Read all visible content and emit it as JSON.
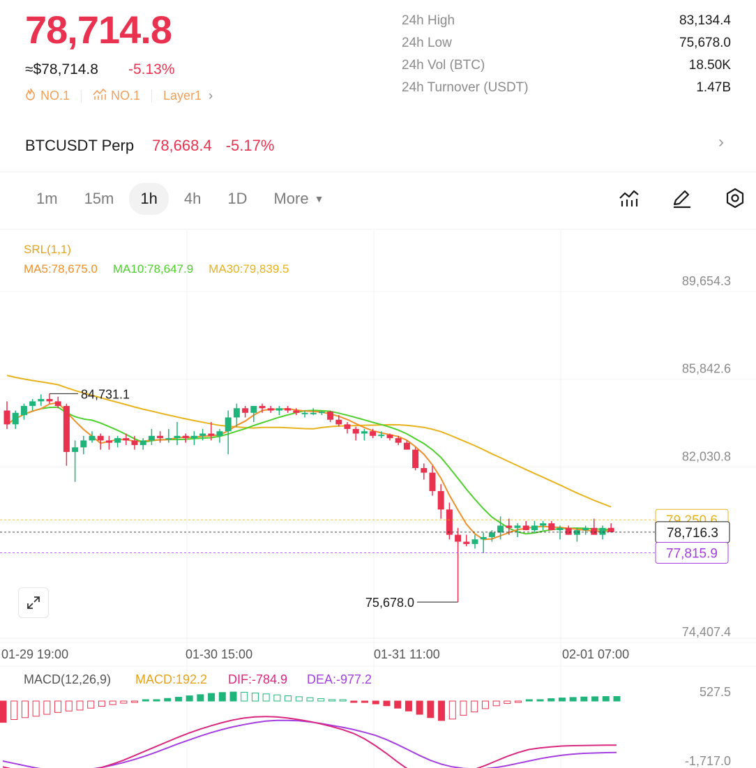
{
  "header": {
    "last_price": "78,714.8",
    "usd_price": "≈$78,714.8",
    "change_pct": "-5.13%",
    "tags": [
      {
        "icon": "flame-icon",
        "label": "NO.1"
      },
      {
        "icon": "trend-icon",
        "label": "NO.1"
      },
      {
        "icon": "",
        "label": "Layer1"
      }
    ]
  },
  "stats": [
    {
      "label": "24h  High",
      "value": "83,134.4"
    },
    {
      "label": "24h  Low",
      "value": "75,678.0"
    },
    {
      "label": "24h  Vol (BTC)",
      "value": "18.50K"
    },
    {
      "label": "24h  Turnover (USDT)",
      "value": "1.47B"
    }
  ],
  "perp": {
    "name": "BTCUSDT Perp",
    "price": "78,668.4",
    "change": "-5.17%"
  },
  "timeframes": [
    "1m",
    "15m",
    "1h",
    "4h",
    "1D"
  ],
  "timeframe_active": "1h",
  "more_label": "More",
  "tool_icons": [
    "indicator-icon",
    "draw-pen-icon",
    "settings-hex-icon"
  ],
  "indicators": {
    "srl": "SRL(1,1)",
    "ma5": "MA5:78,675.0",
    "ma10": "MA10:78,647.9",
    "ma30": "MA30:79,839.5"
  },
  "macd_legend": {
    "name": "MACD(12,26,9)",
    "macd": "MACD:192.2",
    "dif": "DIF:-784.9",
    "dea": "DEA:-977.2"
  },
  "colors": {
    "up": "#1fb57a",
    "down": "#e8324f",
    "ma5": "#ef8f2a",
    "ma10": "#4fcf2e",
    "ma30": "#e8b21d",
    "dif": "#d9267e",
    "dea": "#a43ee0"
  },
  "chart_data": {
    "type": "candlestick",
    "y_axis_ticks": [
      "89,654.3",
      "85,842.6",
      "82,030.8",
      "74,407.4"
    ],
    "x_axis_ticks": [
      "01-29 19:00",
      "01-30 15:00",
      "01-31 11:00",
      "02-01 07:00"
    ],
    "ylim": [
      74407.4,
      89654.3
    ],
    "high_annotation": "84,731.1",
    "low_annotation": "75,678.0",
    "price_levels": [
      {
        "label": "79,250.6",
        "value": 79250.6,
        "kind": "ma30"
      },
      {
        "label": "78,716.3",
        "value": 78716.3,
        "kind": "last"
      },
      {
        "label": "77,815.9",
        "value": 77815.9,
        "kind": "srl"
      }
    ],
    "candles": [
      [
        84000,
        84400,
        83200,
        83400
      ],
      [
        83400,
        84000,
        83200,
        83900
      ],
      [
        83800,
        84300,
        83600,
        84200
      ],
      [
        84200,
        84500,
        84000,
        84400
      ],
      [
        84400,
        84700,
        84200,
        84500
      ],
      [
        84500,
        84731.1,
        84300,
        84400
      ],
      [
        84400,
        84600,
        84100,
        84200
      ],
      [
        84200,
        84300,
        81600,
        82200
      ],
      [
        82200,
        82700,
        80900,
        82400
      ],
      [
        82400,
        82900,
        82100,
        82700
      ],
      [
        82700,
        83100,
        82600,
        82900
      ],
      [
        82900,
        83000,
        82300,
        82700
      ],
      [
        82700,
        82900,
        82300,
        82600
      ],
      [
        82600,
        82900,
        82400,
        82800
      ],
      [
        82800,
        83000,
        82500,
        82700
      ],
      [
        82700,
        82900,
        82300,
        82500
      ],
      [
        82500,
        82800,
        82300,
        82700
      ],
      [
        82700,
        83200,
        82500,
        82900
      ],
      [
        82900,
        83100,
        82600,
        82800
      ],
      [
        82800,
        83200,
        82600,
        82800
      ],
      [
        82800,
        83500,
        82500,
        82900
      ],
      [
        82900,
        83000,
        82600,
        82800
      ],
      [
        82800,
        83100,
        82500,
        82900
      ],
      [
        82900,
        83200,
        82700,
        83000
      ],
      [
        83000,
        83500,
        82700,
        82900
      ],
      [
        82900,
        83200,
        82600,
        83100
      ],
      [
        83100,
        84000,
        82100,
        83700
      ],
      [
        83700,
        84300,
        83300,
        84100
      ],
      [
        84100,
        84200,
        83700,
        83900
      ],
      [
        83900,
        84200,
        83500,
        84200
      ],
      [
        84200,
        84300,
        83900,
        84100
      ],
      [
        84100,
        84200,
        83900,
        84000
      ],
      [
        84000,
        84200,
        83800,
        84100
      ],
      [
        84100,
        84200,
        83900,
        84000
      ],
      [
        84000,
        84100,
        83800,
        83900
      ],
      [
        83900,
        84000,
        83700,
        83900
      ],
      [
        83900,
        84100,
        83800,
        83900
      ],
      [
        83900,
        84000,
        83800,
        83950
      ],
      [
        83950,
        84000,
        83500,
        83600
      ],
      [
        83600,
        83800,
        83300,
        83400
      ],
      [
        83400,
        83500,
        83000,
        83200
      ],
      [
        83200,
        83300,
        82700,
        83000
      ],
      [
        83000,
        83200,
        82700,
        83100
      ],
      [
        83100,
        83200,
        82800,
        82900
      ],
      [
        82900,
        83100,
        82800,
        82950
      ],
      [
        82950,
        83000,
        82700,
        82800
      ],
      [
        82800,
        82900,
        82500,
        82600
      ],
      [
        82600,
        82700,
        82300,
        82300
      ],
      [
        82300,
        82400,
        81400,
        81500
      ],
      [
        81500,
        81700,
        81000,
        81300
      ],
      [
        81300,
        81600,
        80300,
        80500
      ],
      [
        80500,
        80800,
        79300,
        79700
      ],
      [
        79700,
        80000,
        78400,
        78600
      ],
      [
        78600,
        78900,
        75678.0,
        78300
      ],
      [
        78300,
        78600,
        78100,
        78200
      ],
      [
        78200,
        78600,
        78000,
        78400
      ],
      [
        78400,
        78700,
        77800,
        78500
      ],
      [
        78500,
        78800,
        78300,
        78700
      ],
      [
        78700,
        79400,
        78400,
        79000
      ],
      [
        79000,
        79300,
        78600,
        78900
      ],
      [
        78900,
        79100,
        78500,
        79000
      ],
      [
        79000,
        79200,
        78800,
        78800
      ],
      [
        78800,
        79200,
        78700,
        79000
      ],
      [
        79000,
        79200,
        78800,
        79100
      ],
      [
        79100,
        79200,
        78800,
        78800
      ],
      [
        78800,
        79000,
        78400,
        78900
      ],
      [
        78900,
        79000,
        78600,
        78600
      ],
      [
        78600,
        78900,
        78300,
        78800
      ],
      [
        78800,
        79000,
        78600,
        78900
      ],
      [
        78900,
        79300,
        78600,
        78600
      ],
      [
        78600,
        79000,
        78400,
        78900
      ],
      [
        78900,
        79100,
        78700,
        78716.3
      ]
    ]
  },
  "macd_chart": {
    "y_axis_ticks": [
      "527.5",
      "-1,717.0"
    ],
    "ylim": [
      -1717.0,
      527.5
    ],
    "hist": [
      -900,
      -780,
      -700,
      -640,
      -560,
      -480,
      -420,
      -380,
      -300,
      -220,
      -150,
      -90,
      -40,
      10,
      60,
      110,
      160,
      220,
      270,
      320,
      360,
      380,
      370,
      340,
      300,
      260,
      220,
      180,
      140,
      100,
      60,
      20,
      -20,
      -60,
      -120,
      -200,
      -300,
      -420,
      -560,
      -700,
      -820,
      -760,
      -600,
      -460,
      -320,
      -200,
      -100,
      -40,
      20,
      60,
      100,
      130,
      150,
      170,
      180,
      190,
      192.2
    ],
    "dif": [
      -1350,
      -1420,
      -1480,
      -1520,
      -1540,
      -1545,
      -1530,
      -1500,
      -1440,
      -1370,
      -1280,
      -1180,
      -1060,
      -940,
      -820,
      -700,
      -580,
      -470,
      -370,
      -280,
      -200,
      -130,
      -80,
      -50,
      -40,
      -50,
      -80,
      -120,
      -170,
      -230,
      -300,
      -380,
      -480,
      -620,
      -800,
      -1000,
      -1220,
      -1420,
      -1560,
      -1620,
      -1600,
      -1560,
      -1500,
      -1420,
      -1320,
      -1200,
      -1080,
      -980,
      -900,
      -860,
      -830,
      -810,
      -800,
      -795,
      -790,
      -787,
      -784.9
    ],
    "dea": [
      -1200,
      -1260,
      -1320,
      -1380,
      -1420,
      -1440,
      -1450,
      -1440,
      -1410,
      -1370,
      -1310,
      -1240,
      -1160,
      -1070,
      -970,
      -860,
      -750,
      -650,
      -550,
      -460,
      -380,
      -310,
      -250,
      -200,
      -160,
      -140,
      -140,
      -150,
      -180,
      -220,
      -270,
      -320,
      -380,
      -450,
      -530,
      -640,
      -770,
      -910,
      -1050,
      -1180,
      -1280,
      -1350,
      -1390,
      -1410,
      -1400,
      -1370,
      -1320,
      -1260,
      -1200,
      -1140,
      -1090,
      -1050,
      -1020,
      -1000,
      -990,
      -982,
      -977.2
    ]
  }
}
